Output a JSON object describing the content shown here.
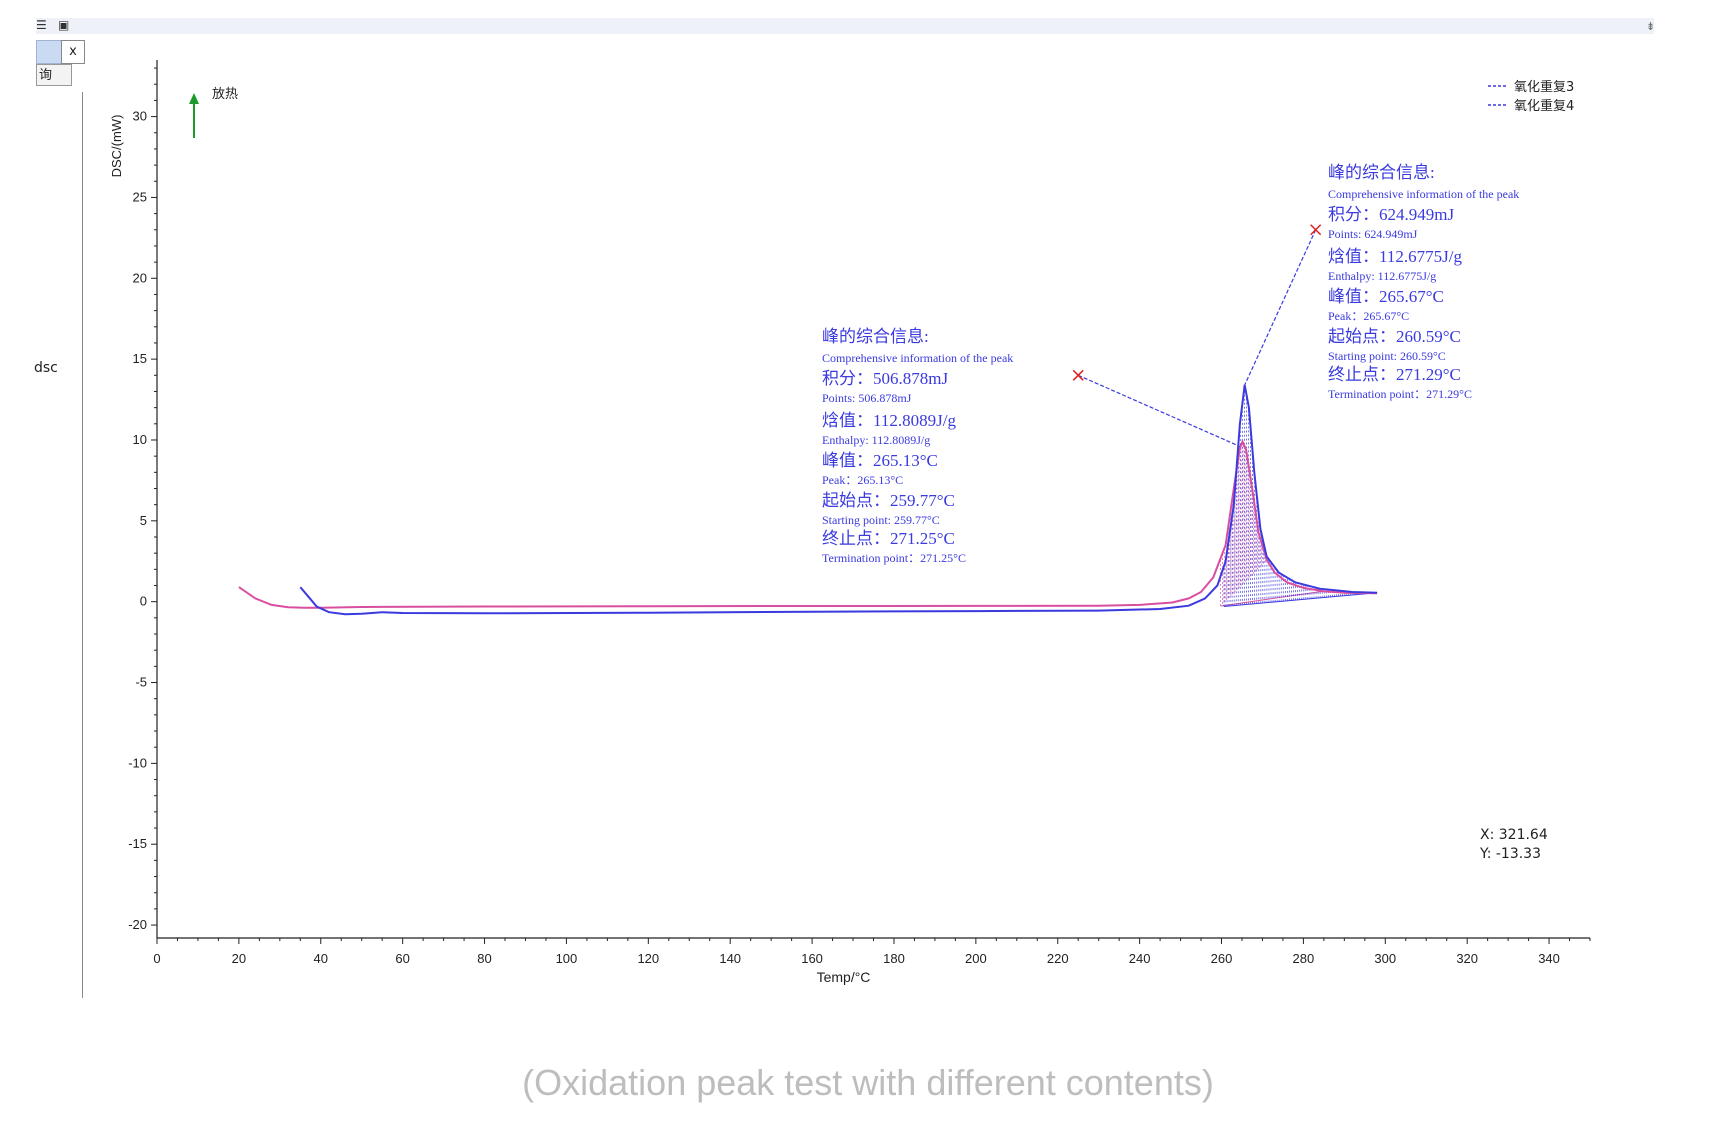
{
  "toolbar": {
    "close_label": "x",
    "query_label": "询",
    "panel_label": "dsc"
  },
  "chart_data": {
    "type": "line",
    "title": "",
    "xlabel": "Temp/°C",
    "ylabel": "DSC/(mW)",
    "xlim": [
      0,
      350
    ],
    "ylim": [
      -20.8,
      33.5
    ],
    "xticks": [
      0,
      20,
      40,
      60,
      80,
      100,
      120,
      140,
      160,
      180,
      200,
      220,
      240,
      260,
      280,
      300,
      320,
      340
    ],
    "yticks": [
      30,
      25,
      20,
      15,
      10,
      5,
      0,
      -5,
      -10,
      -15,
      -20
    ],
    "grid": false,
    "legend_position": "top-right",
    "exo_label": "放热",
    "series": [
      {
        "name": "氧化重复3",
        "color": "#d94fa0",
        "points": [
          [
            20,
            0.9
          ],
          [
            24,
            0.2
          ],
          [
            28,
            -0.2
          ],
          [
            32,
            -0.35
          ],
          [
            36,
            -0.38
          ],
          [
            40,
            -0.38
          ],
          [
            50,
            -0.33
          ],
          [
            80,
            -0.3
          ],
          [
            120,
            -0.28
          ],
          [
            160,
            -0.27
          ],
          [
            200,
            -0.26
          ],
          [
            230,
            -0.25
          ],
          [
            240,
            -0.2
          ],
          [
            248,
            -0.05
          ],
          [
            252,
            0.2
          ],
          [
            255,
            0.6
          ],
          [
            258,
            1.5
          ],
          [
            261,
            3.5
          ],
          [
            263,
            7
          ],
          [
            264.5,
            9.5
          ],
          [
            265.13,
            9.9
          ],
          [
            266,
            9.4
          ],
          [
            267.5,
            7
          ],
          [
            269,
            4.3
          ],
          [
            271,
            2.6
          ],
          [
            273,
            1.8
          ],
          [
            276,
            1.2
          ],
          [
            280,
            0.85
          ],
          [
            285,
            0.65
          ],
          [
            290,
            0.55
          ],
          [
            298,
            0.52
          ]
        ]
      },
      {
        "name": "氧化重复4",
        "color": "#3a3ae0",
        "points": [
          [
            35,
            0.9
          ],
          [
            37,
            0.3
          ],
          [
            39,
            -0.3
          ],
          [
            42,
            -0.65
          ],
          [
            46,
            -0.78
          ],
          [
            50,
            -0.75
          ],
          [
            55,
            -0.65
          ],
          [
            60,
            -0.7
          ],
          [
            80,
            -0.72
          ],
          [
            120,
            -0.68
          ],
          [
            160,
            -0.62
          ],
          [
            200,
            -0.58
          ],
          [
            230,
            -0.55
          ],
          [
            245,
            -0.45
          ],
          [
            252,
            -0.25
          ],
          [
            256,
            0.2
          ],
          [
            259,
            1.0
          ],
          [
            261,
            2.5
          ],
          [
            263,
            6
          ],
          [
            264.5,
            11
          ],
          [
            265.67,
            13.4
          ],
          [
            266.7,
            12
          ],
          [
            268,
            8
          ],
          [
            269.5,
            4.5
          ],
          [
            271,
            2.8
          ],
          [
            274,
            1.8
          ],
          [
            278,
            1.2
          ],
          [
            284,
            0.8
          ],
          [
            292,
            0.6
          ],
          [
            298,
            0.55
          ]
        ]
      }
    ],
    "peaks": [
      {
        "title_cn": "峰的综合信息:",
        "title_en": "Comprehensive information of the peak",
        "integral_cn": "积分：506.878mJ",
        "integral_en": "Points: 506.878mJ",
        "enthalpy_cn": "焓值：112.8089J/g",
        "enthalpy_en": "Enthalpy: 112.8089J/g",
        "peak_cn": "峰值：265.13°C",
        "peak_en": "Peak：265.13°C",
        "start_cn": "起始点：259.77°C",
        "start_en": "Starting point: 259.77°C",
        "end_cn": "终止点：271.25°C",
        "end_en": "Termination point：271.25°C",
        "marker": [
          225,
          14.0
        ],
        "apex": [
          264.5,
          9.6
        ],
        "baseline_start": [
          259.77,
          -0.27
        ],
        "baseline_end": [
          271.25,
          2.6
        ]
      },
      {
        "title_cn": "峰的综合信息:",
        "title_en": "Comprehensive information of the peak",
        "integral_cn": "积分：624.949mJ",
        "integral_en": "Points: 624.949mJ",
        "enthalpy_cn": "焓值：112.6775J/g",
        "enthalpy_en": "Enthalpy: 112.6775J/g",
        "peak_cn": "峰值：265.67°C",
        "peak_en": "Peak：265.67°C",
        "start_cn": "起始点：260.59°C",
        "start_en": "Starting point: 260.59°C",
        "end_cn": "终止点：271.29°C",
        "end_en": "Termination point：271.29°C",
        "marker": [
          283,
          23.0
        ],
        "apex": [
          265.3,
          13.2
        ],
        "baseline_start": [
          260.59,
          -0.3
        ],
        "baseline_end": [
          298,
          0.55
        ]
      }
    ]
  },
  "readout": {
    "x_text": "X: 321.64",
    "y_text": "Y: -13.33"
  },
  "caption": "(Oxidation peak test with different contents)"
}
